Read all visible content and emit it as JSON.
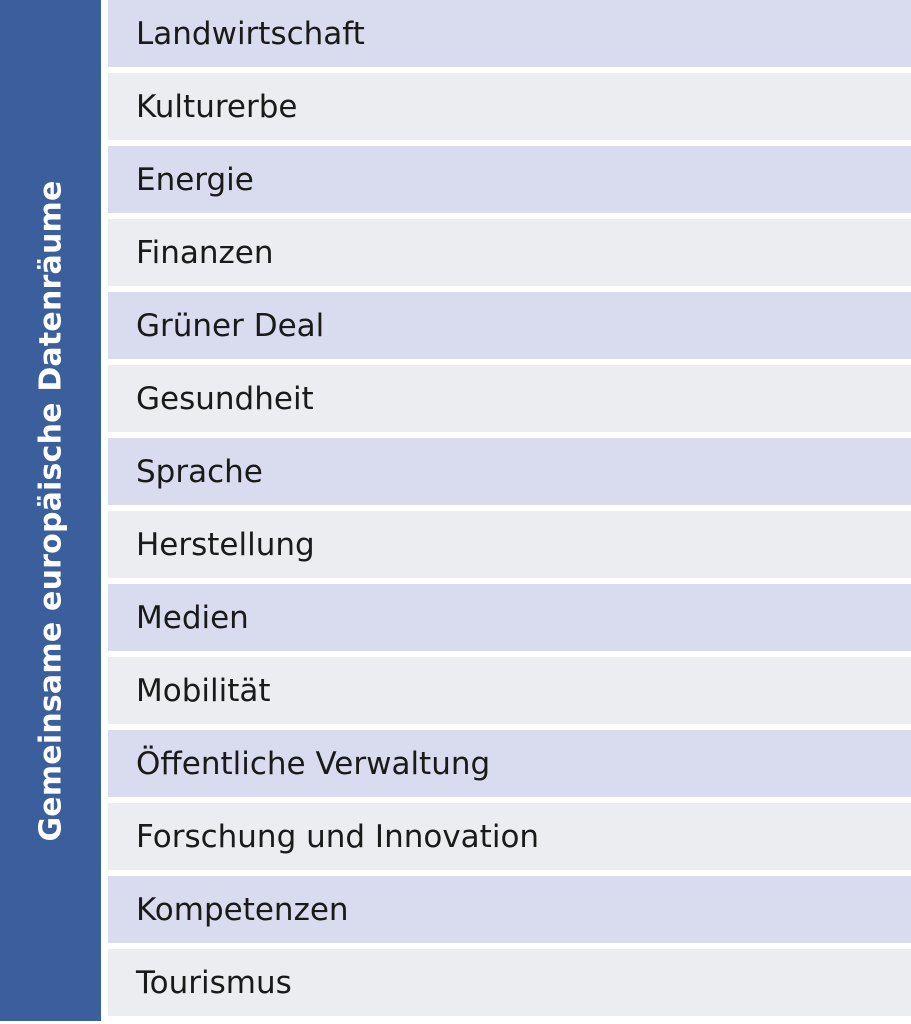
{
  "side_label": "Gemeinsame europäische Datenräume",
  "items": [
    "Landwirtschaft",
    "Kulturerbe",
    "Energie",
    "Finanzen",
    "Grüner Deal",
    "Gesundheit",
    "Sprache",
    "Herstellung",
    "Medien",
    "Mobilität",
    "Öffentliche Verwaltung",
    "Forschung und Innovation",
    "Kompetenzen",
    "Tourismus"
  ],
  "colors": {
    "side_panel": "#3b5f9c",
    "row_odd": "#d9dcee",
    "row_even": "#ebedf0",
    "text": "#1a1a1a"
  }
}
